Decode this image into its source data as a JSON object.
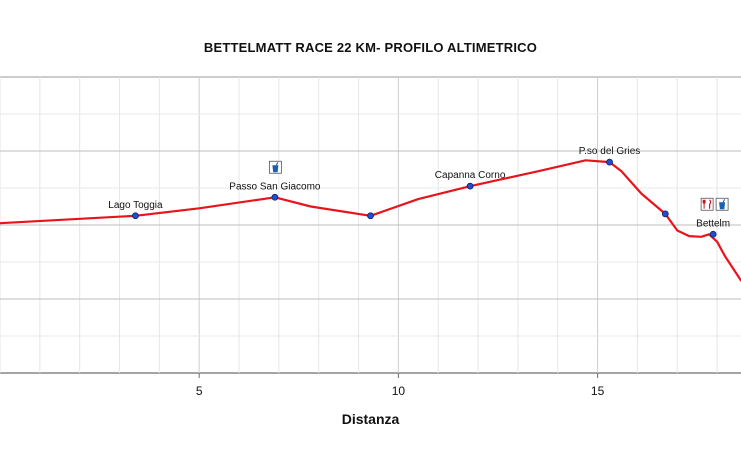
{
  "chart_data": {
    "type": "line",
    "title": "BETTELMATT RACE 22 KM- PROFILO ALTIMETRICO",
    "xlabel": "Distanza",
    "ylabel": "",
    "xlim": [
      0.0,
      18.6
    ],
    "x_ticks": [
      5,
      10,
      15
    ],
    "x_tick_labels": [
      "5",
      "10",
      "15"
    ],
    "grid": true,
    "series": [
      {
        "color": "#e8141c",
        "x": [
          0.0,
          3.4,
          5.0,
          6.9,
          7.8,
          9.3,
          10.5,
          11.8,
          13.5,
          14.7,
          15.3,
          15.6,
          16.1,
          16.7,
          17.0,
          17.3,
          17.6,
          17.8,
          18.0,
          18.2,
          18.6
        ],
        "y": [
          2205,
          2225,
          2245,
          2275,
          2250,
          2225,
          2270,
          2305,
          2345,
          2375,
          2370,
          2345,
          2285,
          2230,
          2185,
          2170,
          2168,
          2175,
          2155,
          2115,
          2050
        ]
      }
    ],
    "waypoints": [
      {
        "name": "Lago Toggia",
        "x": 3.4,
        "y": 2225,
        "icons": []
      },
      {
        "name": "Passo San Giacomo",
        "x": 6.9,
        "y": 2275,
        "icons": [
          "drink-icon"
        ]
      },
      {
        "name": "",
        "x": 9.3,
        "y": 2225,
        "icons": []
      },
      {
        "name": "Capanna Corno",
        "x": 11.8,
        "y": 2305,
        "icons": []
      },
      {
        "name": "P.so del Gries",
        "x": 15.3,
        "y": 2370,
        "icons": []
      },
      {
        "name": "",
        "x": 16.7,
        "y": 2230,
        "icons": []
      },
      {
        "name": "Bettelm",
        "x": 17.9,
        "y": 2175,
        "icons": [
          "food-icon",
          "drink-icon"
        ]
      }
    ],
    "ylim": [
      1800,
      2600
    ]
  }
}
